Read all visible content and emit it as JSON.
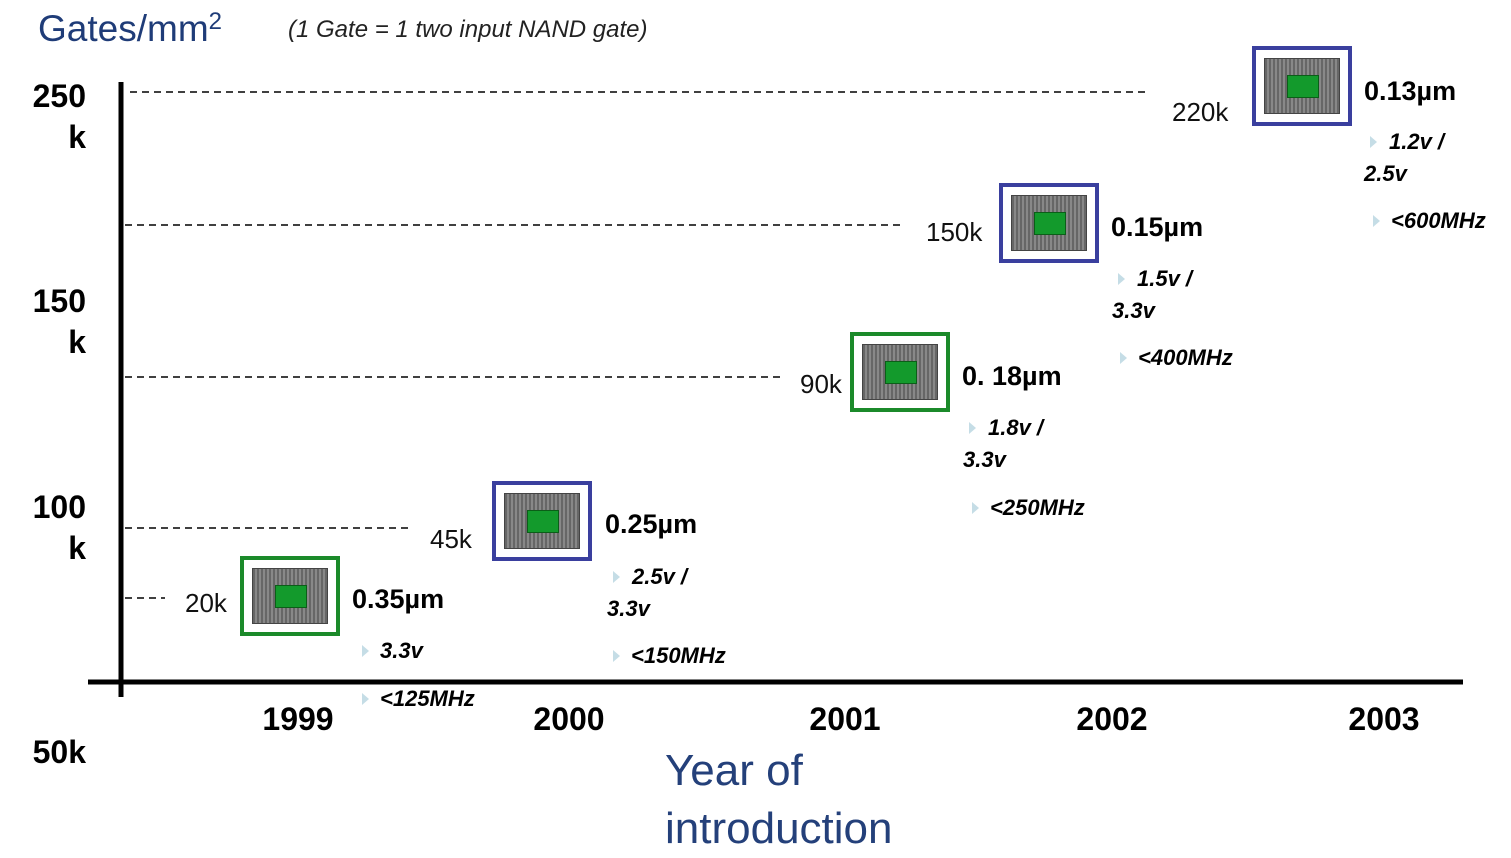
{
  "title": "Gates/mm",
  "title_sup": "2",
  "subtitle": "(1 Gate = 1 two input NAND gate)",
  "y_labels": [
    "250 k",
    "150 k",
    "100 k",
    "50k"
  ],
  "x_labels": [
    "1999",
    "2000",
    "2001",
    "2002",
    "2003"
  ],
  "x_title": "Year of introduction",
  "nodes": [
    {
      "gates": "20k",
      "process": "0.35µm",
      "voltage": "3.3v",
      "frequency": "<125MHz"
    },
    {
      "gates": "45k",
      "process": "0.25µm",
      "voltage": "2.5v / 3.3v",
      "frequency": "<150MHz"
    },
    {
      "gates": "90k",
      "process": "0. 18µm",
      "voltage": "1.8v / 3.3v",
      "frequency": "<250MHz"
    },
    {
      "gates": "150k",
      "process": "0.15µm",
      "voltage": "1.5v / 3.3v",
      "frequency": "<400MHz"
    },
    {
      "gates": "220k",
      "process": "0.13µm",
      "voltage": "1.2v / 2.5v",
      "frequency": "<600MHz"
    }
  ]
}
